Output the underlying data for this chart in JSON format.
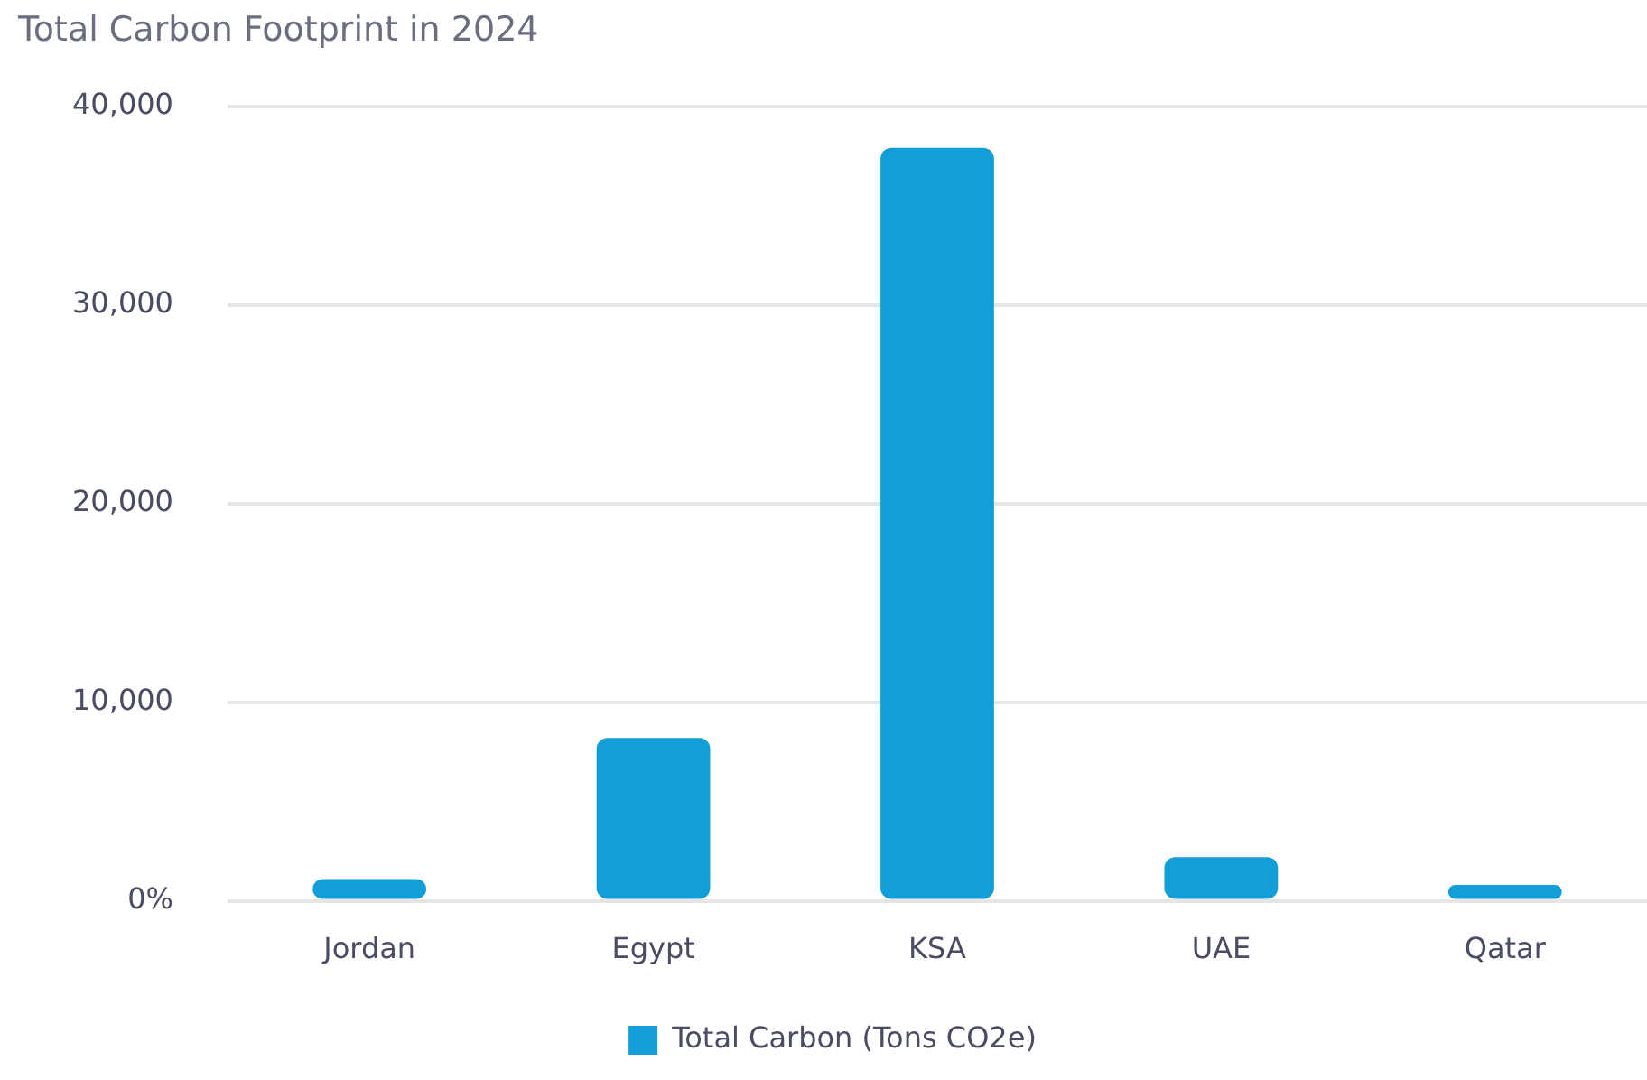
{
  "chart_data": {
    "type": "bar",
    "title": "Total Carbon Footprint in 2024",
    "categories": [
      "Jordan",
      "Egypt",
      "KSA",
      "UAE",
      "Qatar"
    ],
    "series": [
      {
        "name": "Total Carbon (Tons CO2e)",
        "color": "#139ed8",
        "values": [
          1100,
          8200,
          37900,
          2200,
          800
        ]
      }
    ],
    "ylim": [
      0,
      40000
    ],
    "yticks": [
      {
        "value": 0,
        "label": "0%"
      },
      {
        "value": 10000,
        "label": "10,000"
      },
      {
        "value": 20000,
        "label": "20,000"
      },
      {
        "value": 30000,
        "label": "30,000"
      },
      {
        "value": 40000,
        "label": "40,000"
      }
    ],
    "grid": "y",
    "legend": "bottom"
  }
}
